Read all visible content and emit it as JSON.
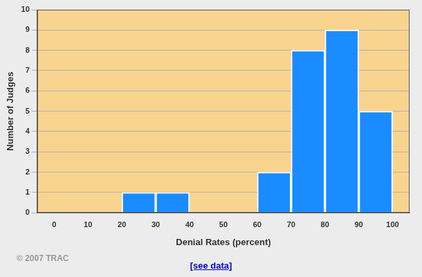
{
  "chart_data": {
    "type": "histogram",
    "bins": [
      0,
      10,
      20,
      30,
      40,
      50,
      60,
      70,
      80,
      90,
      100
    ],
    "counts": [
      0,
      0,
      1,
      1,
      0,
      0,
      2,
      8,
      9,
      5
    ],
    "color": "#1a8cff",
    "xlabel": "Denial Rates (percent)",
    "ylabel": "Number of Judges",
    "xlim": [
      0,
      100
    ],
    "xticks": [
      0,
      10,
      20,
      30,
      40,
      50,
      60,
      70,
      80,
      90,
      100
    ],
    "ylim": [
      0,
      10
    ],
    "yticks": [
      0,
      1,
      2,
      3,
      4,
      5,
      6,
      7,
      8,
      9,
      10
    ],
    "grid": true,
    "annotations": [
      "© 2007 TRAC",
      "[see data]"
    ]
  }
}
